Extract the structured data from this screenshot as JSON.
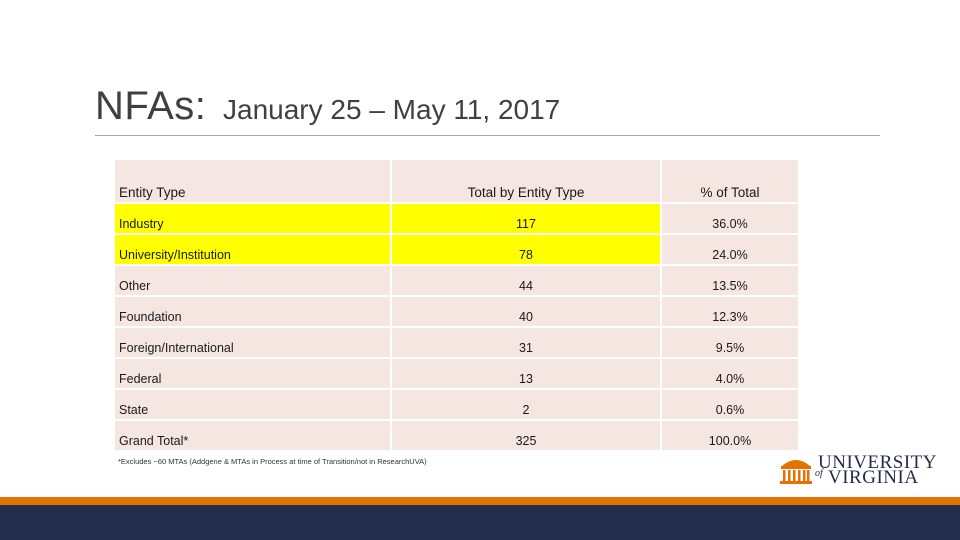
{
  "slide": {
    "title": "NFAs:",
    "subtitle": "January 25 – May 11, 2017"
  },
  "table": {
    "headers": [
      "Entity Type",
      "Total by Entity Type",
      "% of Total"
    ],
    "rows": [
      {
        "entity": "Industry",
        "total": "117",
        "percent": "36.0%",
        "highlight": true
      },
      {
        "entity": "University/Institution",
        "total": "78",
        "percent": "24.0%",
        "highlight": true
      },
      {
        "entity": "Other",
        "total": "44",
        "percent": "13.5%",
        "highlight": false
      },
      {
        "entity": "Foundation",
        "total": "40",
        "percent": "12.3%",
        "highlight": false
      },
      {
        "entity": "Foreign/International",
        "total": "31",
        "percent": "9.5%",
        "highlight": false
      },
      {
        "entity": "Federal",
        "total": "13",
        "percent": "4.0%",
        "highlight": false
      },
      {
        "entity": "State",
        "total": "2",
        "percent": "0.6%",
        "highlight": false
      },
      {
        "entity": "Grand Total*",
        "total": "325",
        "percent": "100.0%",
        "highlight": false
      }
    ],
    "footnote": "*Excludes ~60 MTAs (Addgene & MTAs in Process at time of Transition/not in ResearchUVA)"
  },
  "logo": {
    "line1": "UNIVERSITY",
    "of": "of",
    "line2": "VIRGINIA",
    "icon": "rotunda-icon"
  },
  "colors": {
    "highlight": "#ffff00",
    "cell_bg": "#f5e6e1",
    "orange": "#e57200",
    "navy": "#232d4b",
    "title": "#404040"
  }
}
